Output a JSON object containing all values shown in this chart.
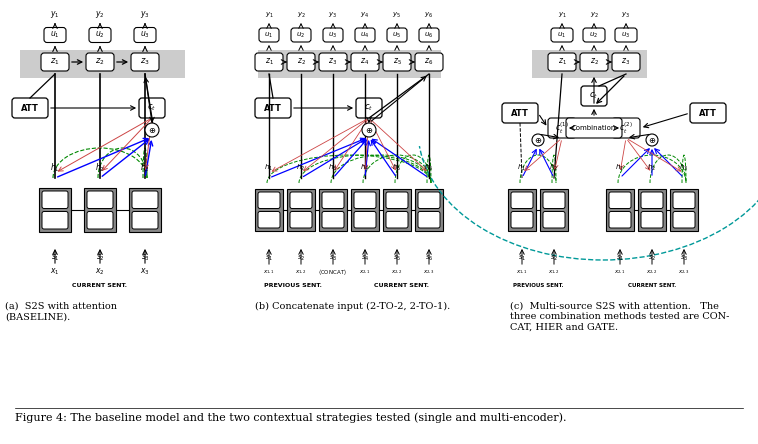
{
  "figure_caption": "Figure 4: The baseline model and the two contextual strategies tested (single and multi-encoder).",
  "bg_color": "#ffffff",
  "figsize": [
    7.58,
    4.44
  ],
  "dpi": 100,
  "caption_a": "(a)  S2S with attention\n(BASELINE).",
  "caption_b": "(b) Concatenate input (2-TO-2, 2-TO-1).",
  "caption_c": "(c)  Multi-source S2S with attention.   The\nthree combination methods tested are CON-\nCAT, HIER and GATE.",
  "label_current": "CURRENT SENT.",
  "label_previous": "PREVIOUS SENT."
}
